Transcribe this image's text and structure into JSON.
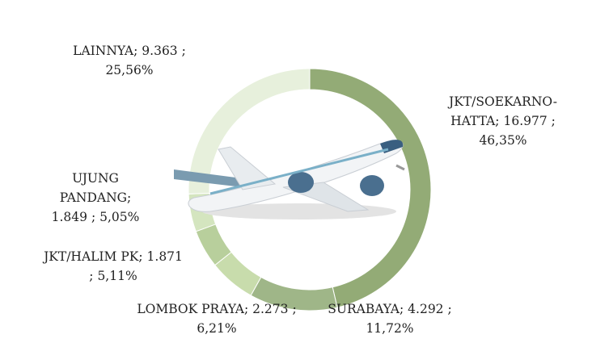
{
  "chart_data": {
    "type": "donut",
    "categories": [
      "JKT/SOEKARNO-HATTA;",
      "SURABAYA;",
      "LOMBOK PRAYA;",
      "JKT/HALIM PK;",
      "UJUNG PANDANG;",
      "LAINNYA;"
    ],
    "values": [
      16977,
      4292,
      2273,
      1871,
      1849,
      9363
    ],
    "value_labels": [
      "16.977 ; 46,35%",
      "4.292 ; 11,72%",
      "2.273 ; 6,21%",
      "1.871 ; 5,11%",
      "1.849 ; 5,05%",
      "9.363 ; 25,56%"
    ],
    "colors": [
      "#93ab76",
      "#9fb688",
      "#c8dcac",
      "#b8cf9c",
      "#d4e5bf",
      "#e7f0dc"
    ]
  }
}
